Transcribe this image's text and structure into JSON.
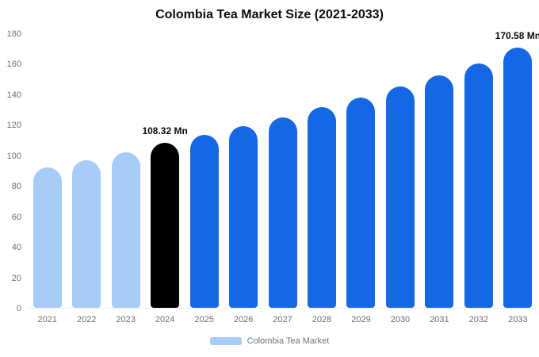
{
  "title": "Colombia Tea Market Size (2021-2033)",
  "legend": {
    "label": "Colombia Tea Market",
    "swatch_color": "#a6cdf7"
  },
  "chart_data": {
    "type": "bar",
    "title": "Colombia Tea Market Size (2021-2033)",
    "categories": [
      "2021",
      "2022",
      "2023",
      "2024",
      "2025",
      "2026",
      "2027",
      "2028",
      "2029",
      "2030",
      "2031",
      "2032",
      "2033"
    ],
    "values": [
      92,
      97,
      102,
      108.32,
      113.5,
      119,
      125,
      131.5,
      138,
      145,
      152.5,
      160.5,
      170.58
    ],
    "unit": "Mn",
    "xlabel": "",
    "ylabel": "",
    "ylim": [
      0,
      180
    ],
    "yticks": [
      0,
      20,
      40,
      60,
      80,
      100,
      120,
      140,
      160,
      180
    ],
    "grid": false,
    "legend_position": "bottom",
    "colors": {
      "past": "#a6cdf7",
      "highlight": "#000000",
      "forecast": "#1568e4"
    },
    "color_by_index": [
      "past",
      "past",
      "past",
      "highlight",
      "forecast",
      "forecast",
      "forecast",
      "forecast",
      "forecast",
      "forecast",
      "forecast",
      "forecast",
      "forecast"
    ],
    "annotations": [
      {
        "index": 3,
        "text": "108.32 Mn"
      },
      {
        "index": 12,
        "text": "170.58 Mn"
      }
    ]
  }
}
